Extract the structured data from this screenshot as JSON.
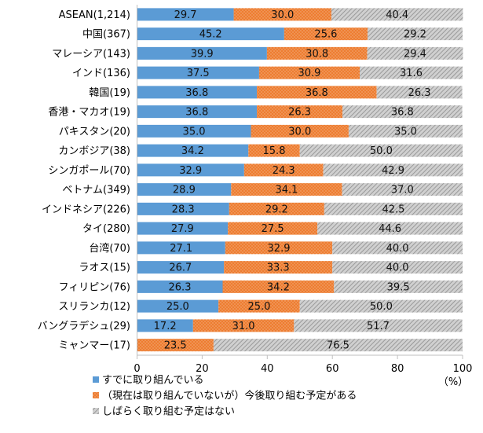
{
  "chart_data": {
    "type": "bar",
    "orientation": "horizontal",
    "stacked": true,
    "categories": [
      "ASEAN(1,214)",
      "中国(367)",
      "マレーシア(143)",
      "インド(136)",
      "韓国(19)",
      "香港・マカオ(19)",
      "パキスタン(20)",
      "カンボジア(38)",
      "シンガポール(70)",
      "ベトナム(349)",
      "インドネシア(226)",
      "タイ(280)",
      "台湾(70)",
      "ラオス(15)",
      "フィリピン(76)",
      "スリランカ(12)",
      "バングラデシュ(29)",
      "ミャンマー(17)"
    ],
    "series": [
      {
        "name": "すでに取り組んでいる",
        "color": "#5B9BD5",
        "pattern": "solid",
        "values": [
          29.7,
          45.2,
          39.9,
          37.5,
          36.8,
          36.8,
          35.0,
          34.2,
          32.9,
          28.9,
          28.3,
          27.9,
          27.1,
          26.7,
          26.3,
          25.0,
          17.2,
          0
        ]
      },
      {
        "name": "（現在は取り組んでいないが）今後取り組む予定がある",
        "color": "#ED7D31",
        "pattern": "dots",
        "values": [
          30.0,
          25.6,
          30.8,
          30.9,
          36.8,
          26.3,
          30.0,
          15.8,
          24.3,
          34.1,
          29.2,
          27.5,
          32.9,
          33.3,
          34.2,
          25.0,
          31.0,
          23.5
        ]
      },
      {
        "name": "しばらく取り組む予定はない",
        "color": "#A5A5A5",
        "pattern": "hatch",
        "values": [
          40.4,
          29.2,
          29.4,
          31.6,
          26.3,
          36.8,
          35.0,
          50.0,
          42.9,
          37.0,
          42.5,
          44.6,
          40.0,
          40.0,
          39.5,
          50.0,
          51.7,
          76.5
        ]
      }
    ],
    "value_labels": [
      [
        "29.7",
        "30.0",
        "40.4"
      ],
      [
        "45.2",
        "25.6",
        "29.2"
      ],
      [
        "39.9",
        "30.8",
        "29.4"
      ],
      [
        "37.5",
        "30.9",
        "31.6"
      ],
      [
        "36.8",
        "36.8",
        "26.3"
      ],
      [
        "36.8",
        "26.3",
        "36.8"
      ],
      [
        "35.0",
        "30.0",
        "35.0"
      ],
      [
        "34.2",
        "15.8",
        "50.0"
      ],
      [
        "32.9",
        "24.3",
        "42.9"
      ],
      [
        "28.9",
        "34.1",
        "37.0"
      ],
      [
        "28.3",
        "29.2",
        "42.5"
      ],
      [
        "27.9",
        "27.5",
        "44.6"
      ],
      [
        "27.1",
        "32.9",
        "40.0"
      ],
      [
        "26.7",
        "33.3",
        "40.0"
      ],
      [
        "26.3",
        "34.2",
        "39.5"
      ],
      [
        "25.0",
        "25.0",
        "50.0"
      ],
      [
        "17.2",
        "31.0",
        "51.7"
      ],
      [
        "",
        "23.5",
        "76.5"
      ]
    ],
    "xlim": [
      0,
      100
    ],
    "xticks": [
      "0",
      "20",
      "40",
      "60",
      "80",
      "100"
    ],
    "xticks_values": [
      0,
      20,
      40,
      60,
      80,
      100
    ],
    "unit_label": "（%）",
    "grid": false,
    "legend_position": "bottom-left"
  }
}
